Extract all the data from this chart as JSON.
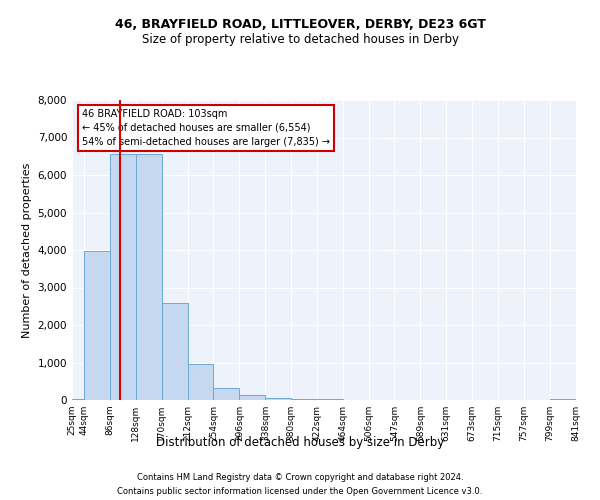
{
  "title1": "46, BRAYFIELD ROAD, LITTLEOVER, DERBY, DE23 6GT",
  "title2": "Size of property relative to detached houses in Derby",
  "xlabel": "Distribution of detached houses by size in Derby",
  "ylabel": "Number of detached properties",
  "footnote1": "Contains HM Land Registry data © Crown copyright and database right 2024.",
  "footnote2": "Contains public sector information licensed under the Open Government Licence v3.0.",
  "annotation_title": "46 BRAYFIELD ROAD: 103sqm",
  "annotation_line1": "← 45% of detached houses are smaller (6,554)",
  "annotation_line2": "54% of semi-detached houses are larger (7,835) →",
  "property_size": 103,
  "bar_color": "#c5d8f0",
  "bar_edge_color": "#6aaad4",
  "red_line_color": "#dd0000",
  "background_color": "#eef2fa",
  "bin_edges": [
    25,
    44,
    86,
    128,
    170,
    212,
    254,
    296,
    338,
    380,
    422,
    464,
    506,
    547,
    589,
    631,
    673,
    715,
    757,
    799,
    841
  ],
  "bin_counts": [
    40,
    3980,
    6550,
    6560,
    2600,
    950,
    310,
    130,
    60,
    30,
    15,
    8,
    5,
    3,
    2,
    2,
    1,
    1,
    1,
    40
  ],
  "ylim": [
    0,
    8000
  ],
  "yticks": [
    0,
    1000,
    2000,
    3000,
    4000,
    5000,
    6000,
    7000,
    8000
  ]
}
